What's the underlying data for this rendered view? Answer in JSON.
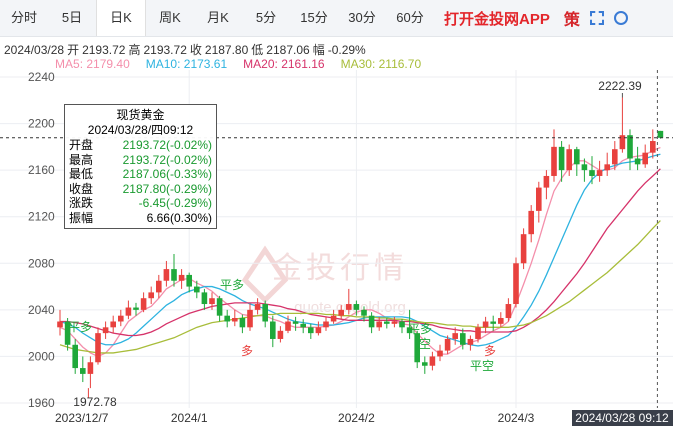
{
  "toolbar": {
    "tabs": [
      "分时",
      "5日",
      "日K",
      "周K",
      "月K",
      "5分",
      "15分",
      "30分",
      "60分"
    ],
    "active": 2,
    "app": "打开金投网APP",
    "icon": "策"
  },
  "info": {
    "date": "2024/03/28",
    "items": [
      {
        "label": "开",
        "value": "2193.72"
      },
      {
        "label": "高",
        "value": "2193.72"
      },
      {
        "label": "收",
        "value": "2187.80"
      },
      {
        "label": "低",
        "value": "2187.06"
      },
      {
        "label": "幅",
        "value": "-0.29%"
      }
    ]
  },
  "tooltip": {
    "title": "现货黄金",
    "time": "2024/03/28/四09:12",
    "rows": [
      {
        "label": "开盘",
        "value": "2193.72(-0.02%)"
      },
      {
        "label": "最高",
        "value": "2193.72(-0.02%)"
      },
      {
        "label": "最低",
        "value": "2187.06(-0.33%)"
      },
      {
        "label": "收盘",
        "value": "2187.80(-0.29%)"
      },
      {
        "label": "涨跌",
        "value": "-6.45(-0.29%)"
      },
      {
        "label": "振幅",
        "value": "6.66(0.30%)"
      }
    ]
  },
  "watermark": {
    "title": "金投行情",
    "url": "quote.cngold.org"
  },
  "crosshair_time": "2024/03/28 09:12",
  "chart_data": {
    "type": "candlestick",
    "up_color": "#e8413e",
    "down_color": "#1fa83a",
    "ylim": [
      1960,
      2240
    ],
    "yticks": [
      1960,
      2000,
      2040,
      2080,
      2120,
      2160,
      2200,
      2240
    ],
    "grid": true,
    "categories": [
      "2023/12/7",
      null,
      null,
      null,
      null,
      null,
      null,
      null,
      null,
      null,
      null,
      null,
      null,
      null,
      null,
      null,
      null,
      "2024/1",
      null,
      null,
      null,
      null,
      null,
      null,
      null,
      null,
      null,
      null,
      null,
      null,
      null,
      null,
      null,
      null,
      null,
      null,
      null,
      null,
      null,
      "2024/2",
      null,
      null,
      null,
      null,
      null,
      null,
      null,
      null,
      null,
      null,
      null,
      null,
      null,
      null,
      null,
      null,
      null,
      null,
      null,
      null,
      "2024/3",
      null,
      null,
      null,
      null,
      null,
      null,
      null,
      null,
      null,
      null,
      null,
      null,
      null,
      null,
      null,
      null,
      null,
      null,
      null
    ],
    "ohlc": [
      [
        2025,
        2040,
        2018,
        2030
      ],
      [
        2030,
        2033,
        2005,
        2010
      ],
      [
        2010,
        2015,
        1985,
        1990
      ],
      [
        1990,
        2000,
        1978,
        1985
      ],
      [
        1985,
        2000,
        1972.78,
        1995
      ],
      [
        1995,
        2025,
        1993,
        2020
      ],
      [
        2020,
        2030,
        2015,
        2025
      ],
      [
        2025,
        2035,
        2020,
        2030
      ],
      [
        2030,
        2040,
        2026,
        2035
      ],
      [
        2035,
        2048,
        2032,
        2042
      ],
      [
        2042,
        2046,
        2035,
        2040
      ],
      [
        2040,
        2055,
        2038,
        2050
      ],
      [
        2050,
        2060,
        2045,
        2055
      ],
      [
        2055,
        2070,
        2050,
        2065
      ],
      [
        2065,
        2082,
        2060,
        2075
      ],
      [
        2075,
        2088,
        2060,
        2065
      ],
      [
        2065,
        2075,
        2058,
        2070
      ],
      [
        2070,
        2072,
        2055,
        2060
      ],
      [
        2060,
        2065,
        2050,
        2055
      ],
      [
        2055,
        2058,
        2040,
        2045
      ],
      [
        2045,
        2055,
        2040,
        2050
      ],
      [
        2050,
        2052,
        2030,
        2035
      ],
      [
        2035,
        2040,
        2025,
        2030
      ],
      [
        2030,
        2040,
        2026,
        2033
      ],
      [
        2033,
        2036,
        2020,
        2025
      ],
      [
        2025,
        2045,
        2022,
        2040
      ],
      [
        2040,
        2050,
        2036,
        2045
      ],
      [
        2045,
        2048,
        2025,
        2030
      ],
      [
        2030,
        2035,
        2008,
        2015
      ],
      [
        2015,
        2026,
        2012,
        2022
      ],
      [
        2022,
        2035,
        2020,
        2030
      ],
      [
        2030,
        2034,
        2022,
        2028
      ],
      [
        2028,
        2032,
        2020,
        2025
      ],
      [
        2025,
        2028,
        2015,
        2020
      ],
      [
        2020,
        2030,
        2018,
        2025
      ],
      [
        2025,
        2034,
        2022,
        2030
      ],
      [
        2030,
        2040,
        2028,
        2035
      ],
      [
        2035,
        2044,
        2032,
        2040
      ],
      [
        2040,
        2058,
        2036,
        2045
      ],
      [
        2045,
        2048,
        2035,
        2040
      ],
      [
        2040,
        2043,
        2030,
        2035
      ],
      [
        2035,
        2038,
        2020,
        2025
      ],
      [
        2025,
        2034,
        2022,
        2030
      ],
      [
        2030,
        2033,
        2024,
        2028
      ],
      [
        2028,
        2034,
        2025,
        2030
      ],
      [
        2030,
        2032,
        2020,
        2025
      ],
      [
        2025,
        2040,
        2015,
        2020
      ],
      [
        2020,
        2022,
        1990,
        1995
      ],
      [
        1995,
        2000,
        1985,
        1992
      ],
      [
        1992,
        2004,
        1988,
        2000
      ],
      [
        2000,
        2010,
        1996,
        2005
      ],
      [
        2005,
        2018,
        2002,
        2015
      ],
      [
        2015,
        2025,
        2010,
        2020
      ],
      [
        2020,
        2024,
        2006,
        2010
      ],
      [
        2010,
        2018,
        2005,
        2015
      ],
      [
        2015,
        2028,
        2012,
        2025
      ],
      [
        2025,
        2034,
        2020,
        2030
      ],
      [
        2030,
        2035,
        2022,
        2028
      ],
      [
        2028,
        2038,
        2025,
        2033
      ],
      [
        2033,
        2050,
        2030,
        2045
      ],
      [
        2045,
        2085,
        2042,
        2080
      ],
      [
        2080,
        2110,
        2075,
        2105
      ],
      [
        2105,
        2130,
        2098,
        2125
      ],
      [
        2125,
        2150,
        2115,
        2145
      ],
      [
        2145,
        2160,
        2135,
        2155
      ],
      [
        2155,
        2195,
        2150,
        2180
      ],
      [
        2180,
        2185,
        2150,
        2160
      ],
      [
        2160,
        2182,
        2155,
        2178
      ],
      [
        2178,
        2180,
        2155,
        2165
      ],
      [
        2165,
        2170,
        2150,
        2160
      ],
      [
        2160,
        2172,
        2148,
        2155
      ],
      [
        2155,
        2168,
        2150,
        2160
      ],
      [
        2160,
        2175,
        2155,
        2165
      ],
      [
        2165,
        2185,
        2160,
        2178
      ],
      [
        2178,
        2222.39,
        2175,
        2190
      ],
      [
        2190,
        2195,
        2160,
        2170
      ],
      [
        2170,
        2180,
        2160,
        2165
      ],
      [
        2165,
        2182,
        2162,
        2175
      ],
      [
        2175,
        2195,
        2170,
        2185
      ],
      [
        2193.72,
        2193.72,
        2187.06,
        2187.8
      ]
    ],
    "series": [
      {
        "name": "MA5",
        "color": "#f48fab",
        "value_label": "2179.40",
        "values": [
          2025,
          2022,
          2015,
          2008,
          2003,
          2000,
          2003,
          2010,
          2020,
          2030,
          2035,
          2040,
          2043,
          2050,
          2058,
          2062,
          2066,
          2067,
          2063,
          2060,
          2056,
          2050,
          2045,
          2040,
          2036,
          2035,
          2035,
          2035,
          2032,
          2030,
          2027,
          2025,
          2025,
          2025,
          2025,
          2026,
          2027,
          2030,
          2034,
          2038,
          2040,
          2040,
          2037,
          2033,
          2030,
          2028,
          2027,
          2020,
          2013,
          2007,
          2002,
          2002,
          2006,
          2010,
          2012,
          2014,
          2018,
          2022,
          2025,
          2030,
          2045,
          2062,
          2080,
          2100,
          2122,
          2142,
          2153,
          2162,
          2168,
          2168,
          2164,
          2160,
          2160,
          2162,
          2168,
          2171,
          2172,
          2173,
          2177,
          2179.4
        ]
      },
      {
        "name": "MA10",
        "color": "#2eb3e0",
        "value_label": "2173.61",
        "values": [
          2030,
          2028,
          2025,
          2020,
          2016,
          2012,
          2010,
          2010,
          2012,
          2015,
          2020,
          2026,
          2032,
          2038,
          2044,
          2048,
          2053,
          2056,
          2058,
          2060,
          2060,
          2058,
          2055,
          2052,
          2048,
          2045,
          2043,
          2041,
          2038,
          2035,
          2032,
          2030,
          2029,
          2028,
          2027,
          2027,
          2027,
          2028,
          2029,
          2031,
          2033,
          2034,
          2034,
          2034,
          2034,
          2034,
          2033,
          2030,
          2026,
          2022,
          2018,
          2016,
          2014,
          2012,
          2010,
          2009,
          2010,
          2012,
          2015,
          2018,
          2025,
          2034,
          2044,
          2056,
          2070,
          2085,
          2100,
          2115,
          2130,
          2143,
          2152,
          2158,
          2162,
          2164,
          2166,
          2167,
          2168,
          2170,
          2172,
          2173.61
        ]
      },
      {
        "name": "MA20",
        "color": "#d6336a",
        "value_label": "2161.16",
        "values": [
          2030,
          2030,
          2029,
          2028,
          2026,
          2024,
          2022,
          2020,
          2019,
          2018,
          2018,
          2019,
          2021,
          2024,
          2028,
          2031,
          2034,
          2037,
          2039,
          2041,
          2043,
          2044,
          2045,
          2046,
          2046,
          2046,
          2046,
          2045,
          2044,
          2043,
          2041,
          2040,
          2038,
          2036,
          2035,
          2034,
          2033,
          2032,
          2031,
          2031,
          2031,
          2031,
          2031,
          2031,
          2031,
          2030,
          2030,
          2029,
          2028,
          2027,
          2025,
          2024,
          2023,
          2022,
          2022,
          2021,
          2021,
          2021,
          2021,
          2021,
          2022,
          2025,
          2029,
          2034,
          2040,
          2047,
          2055,
          2063,
          2071,
          2080,
          2090,
          2100,
          2110,
          2118,
          2126,
          2134,
          2142,
          2149,
          2155,
          2161.16
        ]
      },
      {
        "name": "MA30",
        "color": "#a8bd3a",
        "value_label": "2116.70",
        "values": [
          2010,
          2008,
          2006,
          2005,
          2004,
          2003,
          2003,
          2003,
          2004,
          2005,
          2006,
          2008,
          2010,
          2012,
          2014,
          2016,
          2019,
          2022,
          2025,
          2027,
          2029,
          2030,
          2031,
          2032,
          2033,
          2034,
          2035,
          2036,
          2036,
          2037,
          2037,
          2037,
          2037,
          2037,
          2037,
          2036,
          2036,
          2035,
          2035,
          2034,
          2034,
          2034,
          2033,
          2033,
          2032,
          2032,
          2031,
          2030,
          2029,
          2029,
          2028,
          2027,
          2027,
          2026,
          2026,
          2025,
          2025,
          2025,
          2025,
          2025,
          2026,
          2027,
          2029,
          2032,
          2035,
          2039,
          2043,
          2047,
          2052,
          2057,
          2062,
          2067,
          2072,
          2078,
          2084,
          2090,
          2096,
          2103,
          2110,
          2116.7
        ]
      }
    ],
    "annotations": [
      {
        "text": "2222.39"
      },
      {
        "text": "1972.78"
      },
      {
        "text": "平多"
      },
      {
        "text": "平多"
      },
      {
        "text": "多"
      },
      {
        "text": "平多"
      },
      {
        "text": "空"
      },
      {
        "text": "平空"
      },
      {
        "text": "多"
      }
    ]
  }
}
